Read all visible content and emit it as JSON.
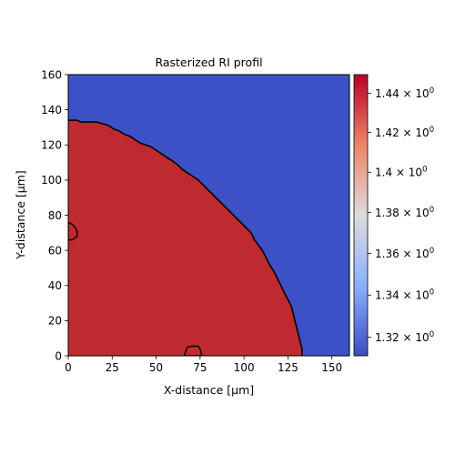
{
  "chart_data": {
    "type": "heatmap",
    "title": "Rasterized RI profil",
    "xlabel": "X-distance [μm]",
    "ylabel": "Y-distance [μm]",
    "xlim": [
      0,
      160
    ],
    "ylim": [
      0,
      160
    ],
    "x_ticks": [
      0,
      25,
      50,
      75,
      100,
      125,
      150
    ],
    "y_ticks": [
      0,
      20,
      40,
      60,
      80,
      100,
      120,
      140,
      160
    ],
    "regions": [
      {
        "name": "",
        "value": 1.445,
        "color": "#be2a2e"
      },
      {
        "name": "",
        "value": 1.313,
        "color": "#3d51c7"
      }
    ],
    "boundary": [
      [
        0,
        134
      ],
      [
        5,
        134
      ],
      [
        7,
        133
      ],
      [
        16,
        133
      ],
      [
        20,
        132
      ],
      [
        23,
        131
      ],
      [
        26,
        129
      ],
      [
        29,
        128
      ],
      [
        32,
        126
      ],
      [
        35,
        125
      ],
      [
        38,
        123
      ],
      [
        41,
        121
      ],
      [
        44,
        120
      ],
      [
        47,
        119
      ],
      [
        50,
        117
      ],
      [
        53,
        115
      ],
      [
        56,
        113
      ],
      [
        59,
        111
      ],
      [
        62,
        109
      ],
      [
        65,
        106
      ],
      [
        68,
        104
      ],
      [
        71,
        102
      ],
      [
        74,
        100
      ],
      [
        77,
        97
      ],
      [
        80,
        94
      ],
      [
        83,
        91
      ],
      [
        86,
        88
      ],
      [
        89,
        85
      ],
      [
        92,
        82
      ],
      [
        95,
        79
      ],
      [
        98,
        76
      ],
      [
        101,
        73
      ],
      [
        104,
        70
      ],
      [
        106,
        66
      ],
      [
        109,
        62
      ],
      [
        111,
        59
      ],
      [
        113,
        55
      ],
      [
        115,
        51
      ],
      [
        117,
        48
      ],
      [
        119,
        44
      ],
      [
        121,
        40
      ],
      [
        123,
        36
      ],
      [
        125,
        32
      ],
      [
        127,
        28
      ],
      [
        128,
        24
      ],
      [
        129,
        20
      ],
      [
        130,
        16
      ],
      [
        131,
        12
      ],
      [
        132,
        8
      ],
      [
        133,
        4
      ],
      [
        133,
        0
      ]
    ],
    "islands": [
      {
        "center": [
          2,
          70
        ],
        "points": [
          [
            0,
            76
          ],
          [
            2,
            75
          ],
          [
            4,
            73
          ],
          [
            5,
            71
          ],
          [
            5,
            68
          ],
          [
            4,
            67
          ],
          [
            2,
            66
          ],
          [
            0,
            66
          ]
        ]
      },
      {
        "center": [
          71,
          2
        ],
        "points": [
          [
            66,
            0
          ],
          [
            67,
            3
          ],
          [
            68,
            5
          ],
          [
            70,
            5.5
          ],
          [
            74,
            5.5
          ],
          [
            75,
            4
          ],
          [
            76,
            0
          ]
        ]
      }
    ],
    "colorbar": {
      "scale": "log",
      "vmin": 1.3113,
      "vmax": 1.4496,
      "ticks": [
        {
          "value": 1.32,
          "mantissa": "1.32",
          "base": "10",
          "exp": "0"
        },
        {
          "value": 1.34,
          "mantissa": "1.34",
          "base": "10",
          "exp": "0"
        },
        {
          "value": 1.36,
          "mantissa": "1.36",
          "base": "10",
          "exp": "0"
        },
        {
          "value": 1.38,
          "mantissa": "1.38",
          "base": "10",
          "exp": "0"
        },
        {
          "value": 1.4,
          "mantissa": "1.4",
          "base": "10",
          "exp": "0"
        },
        {
          "value": 1.42,
          "mantissa": "1.42",
          "base": "10",
          "exp": "0"
        },
        {
          "value": 1.44,
          "mantissa": "1.44",
          "base": "10",
          "exp": "0"
        }
      ],
      "gradient": [
        "#b40426",
        "#ee8468",
        "#dddcdc",
        "#8caffe",
        "#3b4cc0"
      ]
    },
    "grid": false,
    "legend": "none"
  }
}
